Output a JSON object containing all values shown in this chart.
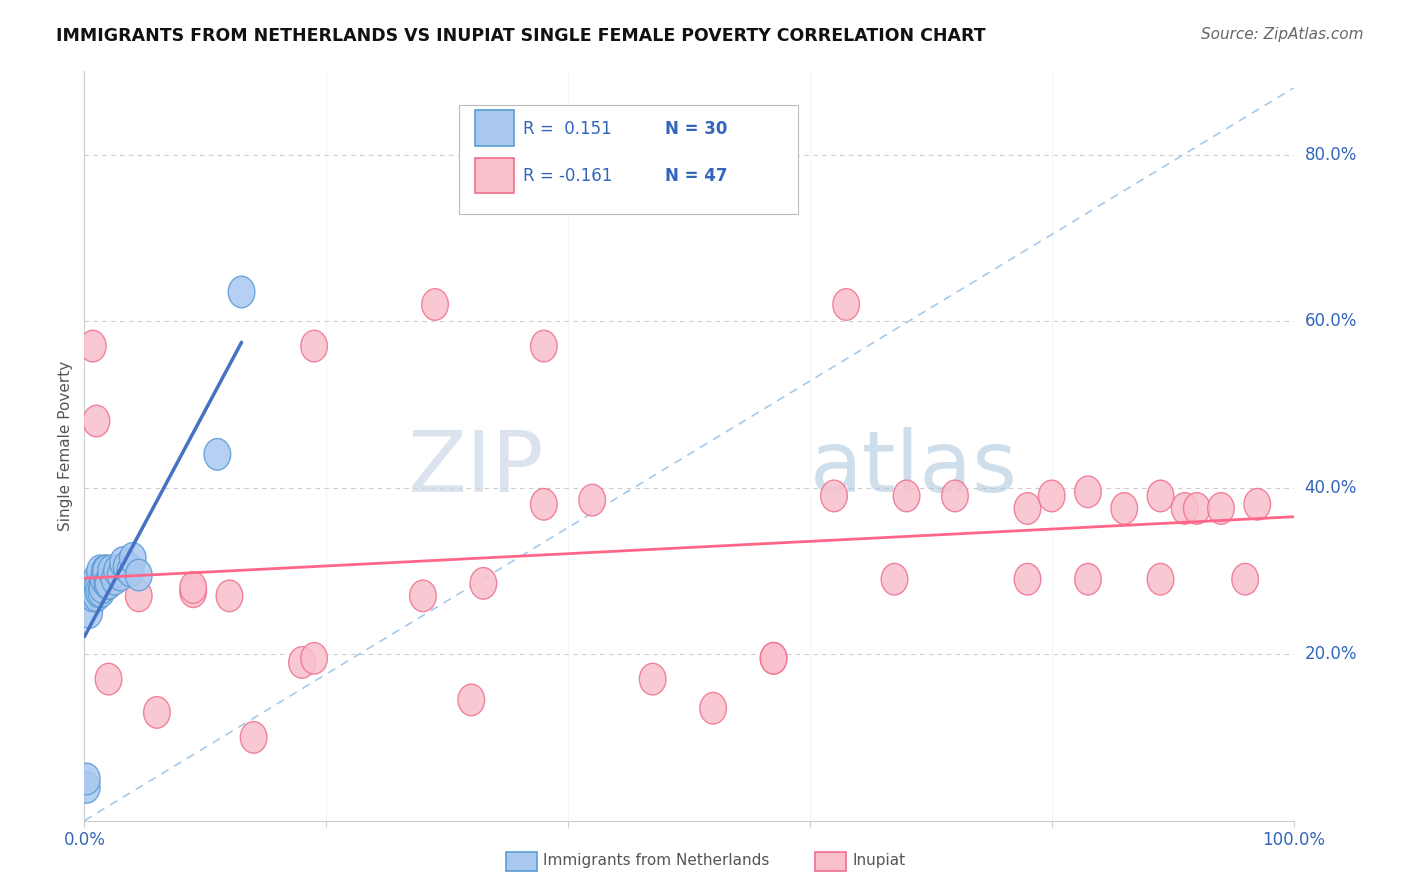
{
  "title": "IMMIGRANTS FROM NETHERLANDS VS INUPIAT SINGLE FEMALE POVERTY CORRELATION CHART",
  "source": "Source: ZipAtlas.com",
  "ylabel": "Single Female Poverty",
  "xlim": [
    0.0,
    1.0
  ],
  "ylim": [
    0.0,
    0.9
  ],
  "xtick_vals": [
    0.0,
    0.2,
    0.4,
    0.6,
    0.8,
    1.0
  ],
  "xtick_labels": [
    "0.0%",
    "",
    "",
    "",
    "",
    "100.0%"
  ],
  "ytick_vals": [
    0.2,
    0.4,
    0.6,
    0.8
  ],
  "ytick_labels": [
    "20.0%",
    "40.0%",
    "60.0%",
    "80.0%"
  ],
  "color_blue": "#A8C8F0",
  "color_pink": "#F9C0CC",
  "edge_blue": "#5B9BD5",
  "edge_pink": "#F07090",
  "line_blue": "#4472C4",
  "line_pink": "#FF6688",
  "line_dashed": "#9DC3E6",
  "watermark_zip": "ZIP",
  "watermark_atlas": "atlas",
  "netherlands_x": [
    0.002,
    0.002,
    0.004,
    0.006,
    0.007,
    0.008,
    0.009,
    0.01,
    0.01,
    0.011,
    0.012,
    0.013,
    0.014,
    0.015,
    0.016,
    0.017,
    0.018,
    0.019,
    0.02,
    0.022,
    0.025,
    0.027,
    0.03,
    0.032,
    0.035,
    0.038,
    0.04,
    0.045,
    0.11,
    0.13
  ],
  "netherlands_y": [
    0.04,
    0.05,
    0.25,
    0.28,
    0.27,
    0.275,
    0.28,
    0.27,
    0.29,
    0.28,
    0.275,
    0.3,
    0.275,
    0.28,
    0.29,
    0.3,
    0.3,
    0.285,
    0.285,
    0.3,
    0.29,
    0.3,
    0.295,
    0.31,
    0.305,
    0.3,
    0.315,
    0.295,
    0.44,
    0.635
  ],
  "inupiat_x": [
    0.002,
    0.003,
    0.004,
    0.005,
    0.007,
    0.01,
    0.01,
    0.02,
    0.02,
    0.045,
    0.06,
    0.09,
    0.09,
    0.12,
    0.14,
    0.18,
    0.19,
    0.19,
    0.28,
    0.29,
    0.32,
    0.33,
    0.38,
    0.38,
    0.42,
    0.47,
    0.52,
    0.57,
    0.57,
    0.62,
    0.63,
    0.67,
    0.68,
    0.72,
    0.78,
    0.78,
    0.8,
    0.83,
    0.83,
    0.86,
    0.89,
    0.89,
    0.91,
    0.92,
    0.94,
    0.96,
    0.97
  ],
  "inupiat_y": [
    0.275,
    0.275,
    0.275,
    0.28,
    0.57,
    0.28,
    0.48,
    0.285,
    0.17,
    0.27,
    0.13,
    0.275,
    0.28,
    0.27,
    0.1,
    0.19,
    0.195,
    0.57,
    0.27,
    0.62,
    0.145,
    0.285,
    0.38,
    0.57,
    0.385,
    0.17,
    0.135,
    0.195,
    0.195,
    0.39,
    0.62,
    0.29,
    0.39,
    0.39,
    0.29,
    0.375,
    0.39,
    0.29,
    0.395,
    0.375,
    0.29,
    0.39,
    0.375,
    0.375,
    0.375,
    0.29,
    0.38
  ]
}
